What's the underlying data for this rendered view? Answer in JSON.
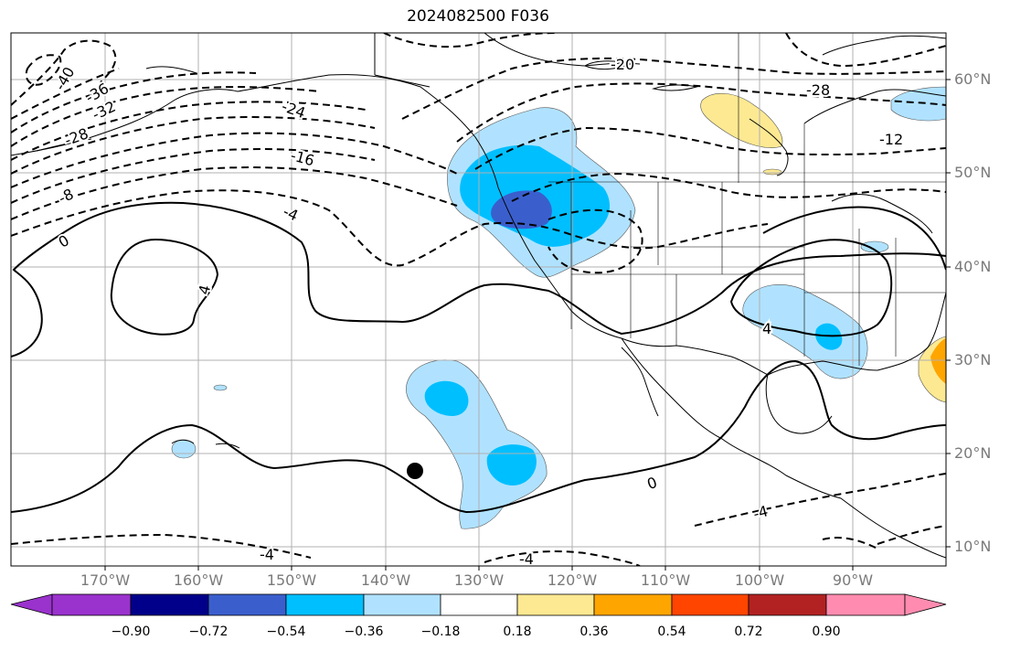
{
  "title": "2024082500 F036",
  "lat_labels": [
    "60°N",
    "50°N",
    "40°N",
    "30°N",
    "20°N",
    "10°N"
  ],
  "lon_labels": [
    "170°W",
    "160°W",
    "150°W",
    "140°W",
    "130°W",
    "120°W",
    "110°W",
    "100°W",
    "90°W"
  ],
  "contour_labels": [
    "-40",
    "-36",
    "-32",
    "-28",
    "-24",
    "-20",
    "-16",
    "-12",
    "-8",
    "-4",
    "0",
    "4",
    "-28",
    "-12",
    "4",
    "0",
    "-4",
    "-4",
    "-4"
  ],
  "colorbar": {
    "ticks": [
      "−0.90",
      "−0.72",
      "−0.54",
      "−0.36",
      "−0.18",
      "0.18",
      "0.36",
      "0.54",
      "0.72",
      "0.90"
    ],
    "colors": [
      "#9a32cd",
      "#00008b",
      "#3a5fcd",
      "#00bfff",
      "#b0e2ff",
      "#ffffff",
      "#fde992",
      "#ffa500",
      "#ff4500",
      "#b22222",
      "#ff8cb0"
    ]
  },
  "marker": "storm-center-dot"
}
